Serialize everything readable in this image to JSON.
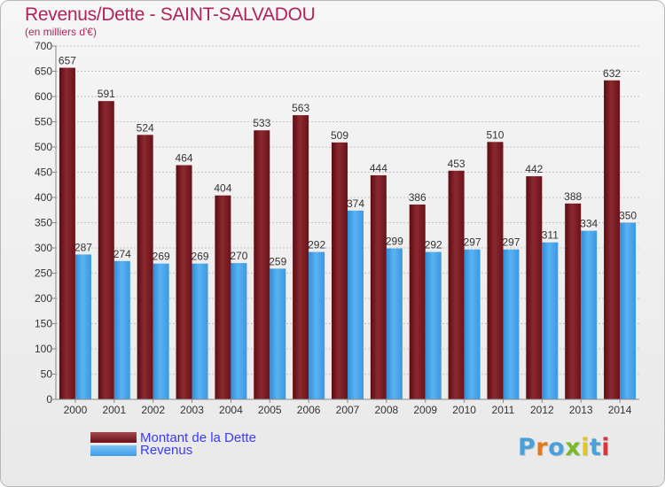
{
  "header": {
    "title": "Revenus/Dette - SAINT-SALVADOU",
    "subtitle": "(en milliers d'€)"
  },
  "legend": {
    "items": [
      {
        "label": "Montant de la Dette",
        "color": "#6e0f17"
      },
      {
        "label": "Revenus",
        "color": "#3d9ee8"
      }
    ]
  },
  "brand": {
    "logo_text": "Proxiti",
    "colors": [
      "#4aa0d8",
      "#e07a1f",
      "#4aa0d8",
      "#7ab82a",
      "#e0c81f",
      "#4aa0d8",
      "#d03a3a"
    ]
  },
  "colors": {
    "debt": "#7a1a22",
    "revenue": "#3d9ee8",
    "title": "#b0245a"
  },
  "chart_data": {
    "type": "bar",
    "title": "Revenus/Dette - SAINT-SALVADOU",
    "subtitle": "(en milliers d'€)",
    "categories": [
      "2000",
      "2001",
      "2002",
      "2003",
      "2004",
      "2005",
      "2006",
      "2007",
      "2008",
      "2009",
      "2010",
      "2011",
      "2012",
      "2013",
      "2014"
    ],
    "series": [
      {
        "name": "Montant de la Dette",
        "values": [
          657,
          591,
          524,
          464,
          404,
          533,
          563,
          509,
          444,
          386,
          453,
          510,
          442,
          388,
          632
        ]
      },
      {
        "name": "Revenus",
        "values": [
          287,
          274,
          269,
          269,
          270,
          259,
          292,
          374,
          299,
          292,
          297,
          297,
          311,
          334,
          350
        ]
      }
    ],
    "ylim": [
      0,
      700
    ],
    "yticks": [
      0,
      50,
      100,
      150,
      200,
      250,
      300,
      350,
      400,
      450,
      500,
      550,
      600,
      650,
      700
    ],
    "grid": true,
    "legend_position": "bottom-left"
  }
}
